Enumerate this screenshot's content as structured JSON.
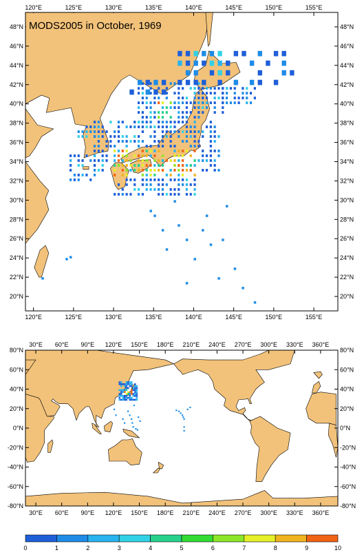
{
  "title": "MODS2005 in October, 1969",
  "colors": {
    "land": "#f2c27a",
    "ocean": "#ffffff",
    "frame": "#000000"
  },
  "top_map": {
    "lon_range": [
      119,
      158
    ],
    "lat_range": [
      18.5,
      49.5
    ],
    "x_ticks": [
      "120°E",
      "125°E",
      "130°E",
      "135°E",
      "140°E",
      "145°E",
      "150°E",
      "155°E"
    ],
    "y_ticks": [
      "48°N",
      "46°N",
      "44°N",
      "42°N",
      "40°N",
      "38°N",
      "36°N",
      "34°N",
      "32°N",
      "30°N",
      "28°N",
      "26°N",
      "24°N",
      "22°N",
      "20°N"
    ]
  },
  "bottom_map": {
    "lon_range": [
      18,
      380
    ],
    "lat_range": [
      -80,
      80
    ],
    "x_ticks": [
      "30°E",
      "60°E",
      "90°E",
      "120°E",
      "150°E",
      "180°E",
      "210°E",
      "240°E",
      "270°E",
      "300°E",
      "330°E",
      "360°E"
    ],
    "y_ticks": [
      "80°N",
      "60°N",
      "40°N",
      "20°N",
      "0°N",
      "-20°N",
      "-40°N",
      "-60°N",
      "-80°N"
    ]
  },
  "colorbar": {
    "labels": [
      "0",
      "1",
      "2",
      "3",
      "4",
      "5",
      "6",
      "7",
      "8",
      "9",
      "10"
    ],
    "colors": [
      "#1e5fd8",
      "#1e8ce6",
      "#28b4f0",
      "#32d2e6",
      "#28d28c",
      "#32dc32",
      "#8ce628",
      "#e6f028",
      "#f0b41e",
      "#f06414"
    ]
  }
}
